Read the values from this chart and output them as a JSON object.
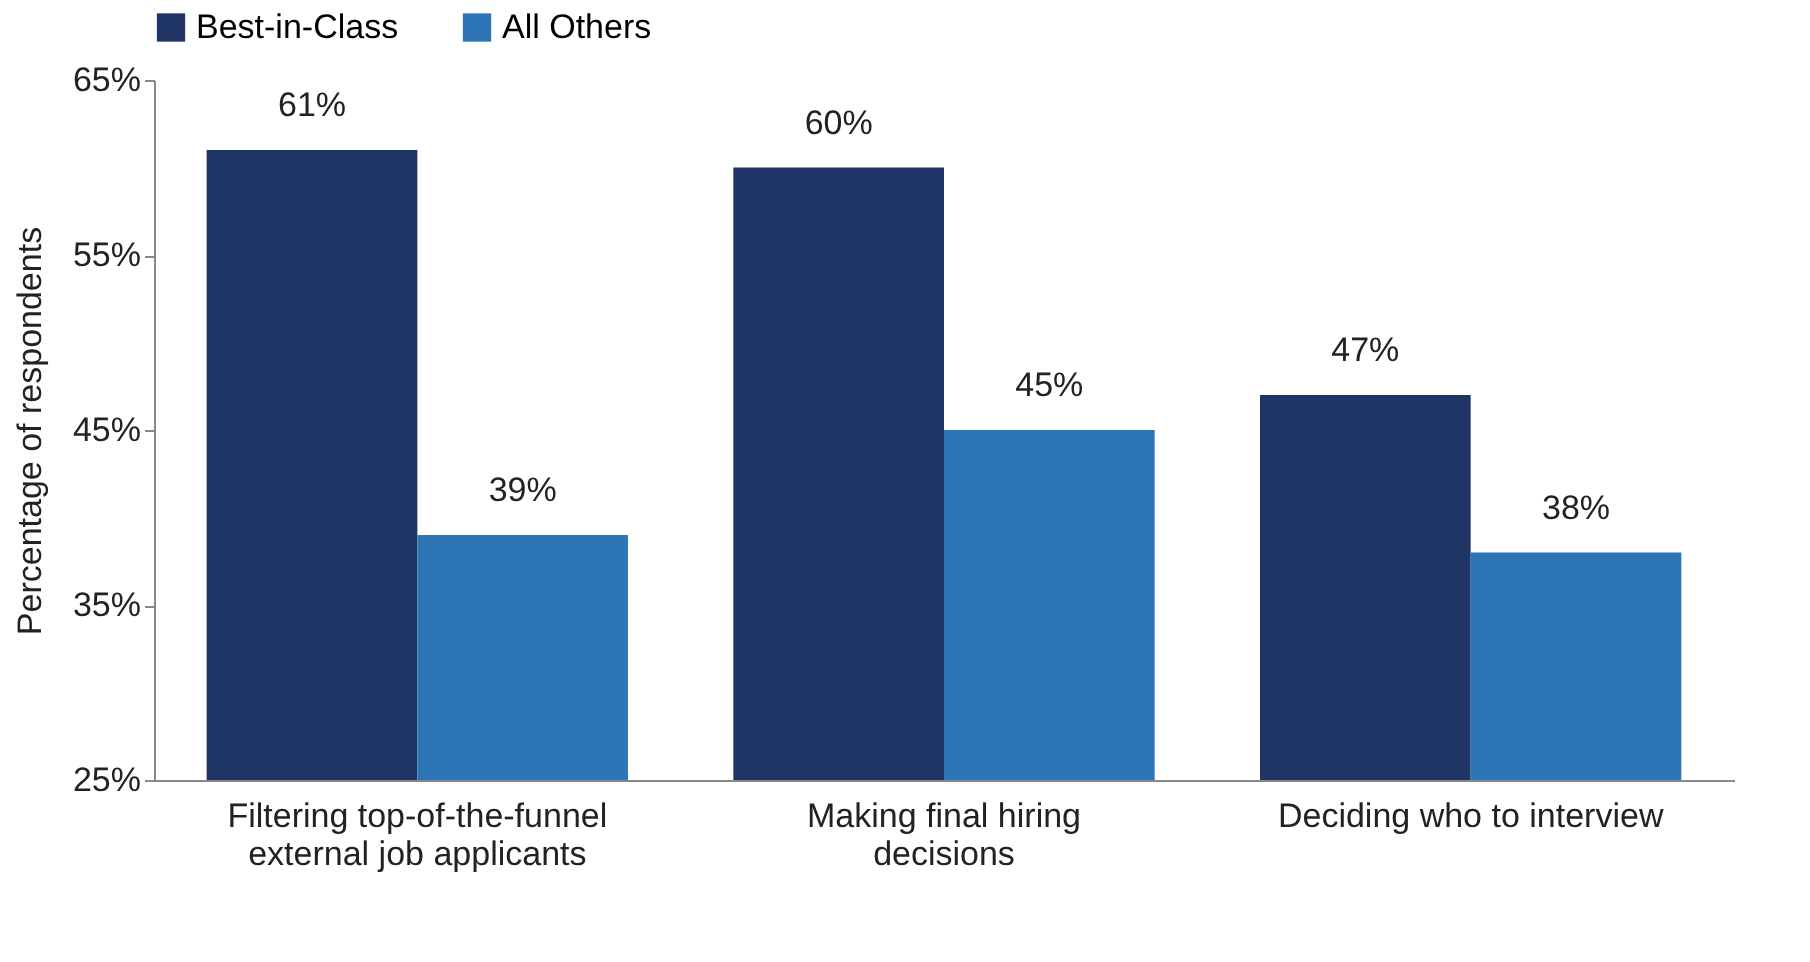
{
  "chart_data": {
    "type": "bar",
    "ylabel": "Percentage of respondents",
    "categories": [
      "Filtering top-of-the-funnel external job applicants",
      "Making final hiring decisions",
      "Deciding who to interview"
    ],
    "series": [
      {
        "name": "Best-in-Class",
        "color": "#1f3566",
        "values": [
          61,
          60,
          47
        ],
        "value_labels": [
          "61%",
          "60%",
          "47%"
        ]
      },
      {
        "name": "All Others",
        "color": "#2e75b6",
        "values": [
          39,
          45,
          38
        ],
        "value_labels": [
          "39%",
          "45%",
          "38%"
        ]
      }
    ],
    "ylim": [
      25,
      65
    ],
    "yticks": [
      {
        "value": 25,
        "label": "25%"
      },
      {
        "value": 35,
        "label": "35%"
      },
      {
        "value": 45,
        "label": "45%"
      },
      {
        "value": 55,
        "label": "55%"
      },
      {
        "value": 65,
        "label": "65%"
      }
    ],
    "grid": false,
    "legend": "top"
  }
}
